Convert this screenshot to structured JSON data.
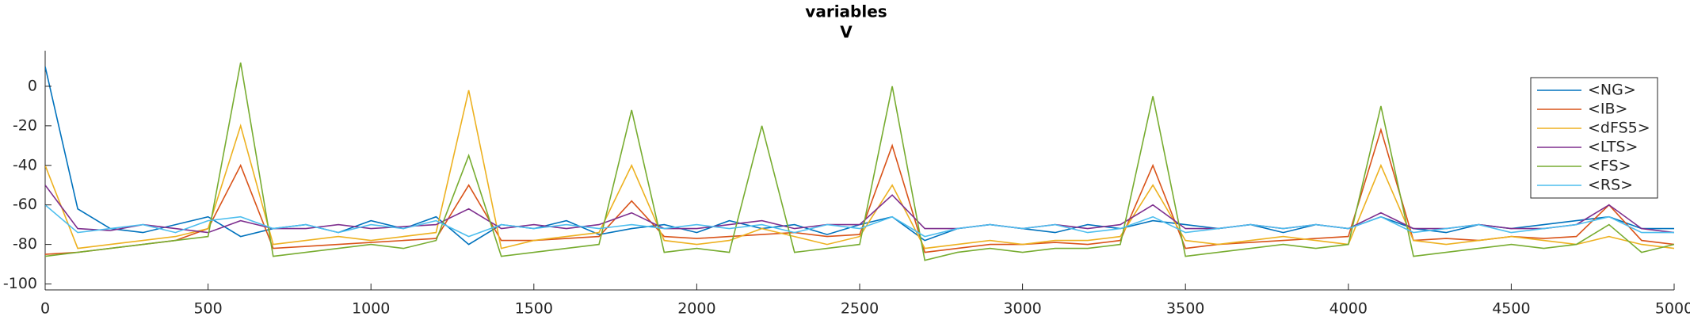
{
  "chart_data": {
    "type": "line",
    "title": "variables",
    "subtitle": "V",
    "x": [
      0,
      100,
      200,
      300,
      400,
      500,
      600,
      700,
      800,
      900,
      1000,
      1100,
      1200,
      1300,
      1400,
      1500,
      1600,
      1700,
      1800,
      1900,
      2000,
      2100,
      2200,
      2300,
      2400,
      2500,
      2600,
      2700,
      2800,
      2900,
      3000,
      3100,
      3200,
      3300,
      3400,
      3500,
      3600,
      3700,
      3800,
      3900,
      4000,
      4100,
      4200,
      4300,
      4400,
      4500,
      4600,
      4700,
      4800,
      4900,
      5000
    ],
    "series": [
      {
        "name": "<NG>",
        "color": "#0072BD",
        "values": [
          10,
          -62,
          -72,
          -74,
          -70,
          -66,
          -76,
          -72,
          -70,
          -74,
          -68,
          -72,
          -66,
          -80,
          -70,
          -72,
          -68,
          -75,
          -72,
          -70,
          -74,
          -68,
          -72,
          -70,
          -75,
          -70,
          -66,
          -78,
          -72,
          -70,
          -72,
          -74,
          -70,
          -72,
          -68,
          -70,
          -72,
          -70,
          -74,
          -70,
          -72,
          -66,
          -72,
          -74,
          -70,
          -72,
          -70,
          -68,
          -66,
          -72,
          -72
        ]
      },
      {
        "name": "<IB>",
        "color": "#D95319",
        "values": [
          -85,
          -84,
          -82,
          -80,
          -78,
          -72,
          -40,
          -82,
          -81,
          -80,
          -79,
          -78,
          -77,
          -50,
          -78,
          -78,
          -77,
          -76,
          -58,
          -76,
          -77,
          -76,
          -75,
          -74,
          -76,
          -75,
          -30,
          -84,
          -82,
          -80,
          -80,
          -79,
          -80,
          -78,
          -40,
          -82,
          -80,
          -79,
          -78,
          -77,
          -76,
          -22,
          -78,
          -77,
          -78,
          -76,
          -77,
          -76,
          -60,
          -78,
          -80
        ]
      },
      {
        "name": "<dFS5>",
        "color": "#EDB120",
        "values": [
          -40,
          -82,
          -80,
          -78,
          -76,
          -72,
          -20,
          -80,
          -78,
          -76,
          -78,
          -76,
          -74,
          -2,
          -82,
          -78,
          -76,
          -74,
          -40,
          -78,
          -80,
          -78,
          -72,
          -76,
          -80,
          -76,
          -50,
          -82,
          -80,
          -78,
          -80,
          -78,
          -78,
          -76,
          -50,
          -78,
          -80,
          -78,
          -76,
          -78,
          -80,
          -40,
          -78,
          -80,
          -78,
          -76,
          -78,
          -80,
          -76,
          -80,
          -82
        ]
      },
      {
        "name": "<LTS>",
        "color": "#7E2F8E",
        "values": [
          -50,
          -72,
          -73,
          -70,
          -72,
          -74,
          -68,
          -72,
          -72,
          -70,
          -72,
          -71,
          -70,
          -62,
          -72,
          -70,
          -72,
          -70,
          -64,
          -72,
          -72,
          -70,
          -68,
          -72,
          -70,
          -70,
          -55,
          -72,
          -72,
          -70,
          -72,
          -70,
          -72,
          -70,
          -60,
          -72,
          -72,
          -70,
          -72,
          -70,
          -72,
          -64,
          -72,
          -72,
          -70,
          -72,
          -72,
          -70,
          -60,
          -72,
          -74
        ]
      },
      {
        "name": "<FS>",
        "color": "#77AC30",
        "values": [
          -86,
          -84,
          -82,
          -80,
          -78,
          -76,
          12,
          -86,
          -84,
          -82,
          -80,
          -82,
          -78,
          -35,
          -86,
          -84,
          -82,
          -80,
          -12,
          -84,
          -82,
          -84,
          -20,
          -84,
          -82,
          -80,
          0,
          -88,
          -84,
          -82,
          -84,
          -82,
          -82,
          -80,
          -5,
          -86,
          -84,
          -82,
          -80,
          -82,
          -80,
          -10,
          -86,
          -84,
          -82,
          -80,
          -82,
          -80,
          -70,
          -84,
          -80
        ]
      },
      {
        "name": "<RS>",
        "color": "#4DBEEE",
        "values": [
          -60,
          -74,
          -72,
          -70,
          -74,
          -68,
          -66,
          -72,
          -70,
          -74,
          -70,
          -72,
          -68,
          -76,
          -70,
          -72,
          -70,
          -72,
          -70,
          -72,
          -70,
          -72,
          -70,
          -74,
          -70,
          -72,
          -66,
          -76,
          -72,
          -70,
          -72,
          -70,
          -74,
          -72,
          -66,
          -74,
          -72,
          -70,
          -72,
          -70,
          -72,
          -66,
          -74,
          -72,
          -70,
          -74,
          -72,
          -70,
          -66,
          -74,
          -74
        ]
      }
    ],
    "xlim": [
      0,
      5000
    ],
    "xticks": [
      0,
      500,
      1000,
      1500,
      2000,
      2500,
      3000,
      3500,
      4000,
      4500,
      5000
    ],
    "ylim": [
      -103,
      18
    ],
    "yticks": [
      -100,
      -80,
      -60,
      -40,
      -20,
      0
    ],
    "legend": "northeast"
  }
}
